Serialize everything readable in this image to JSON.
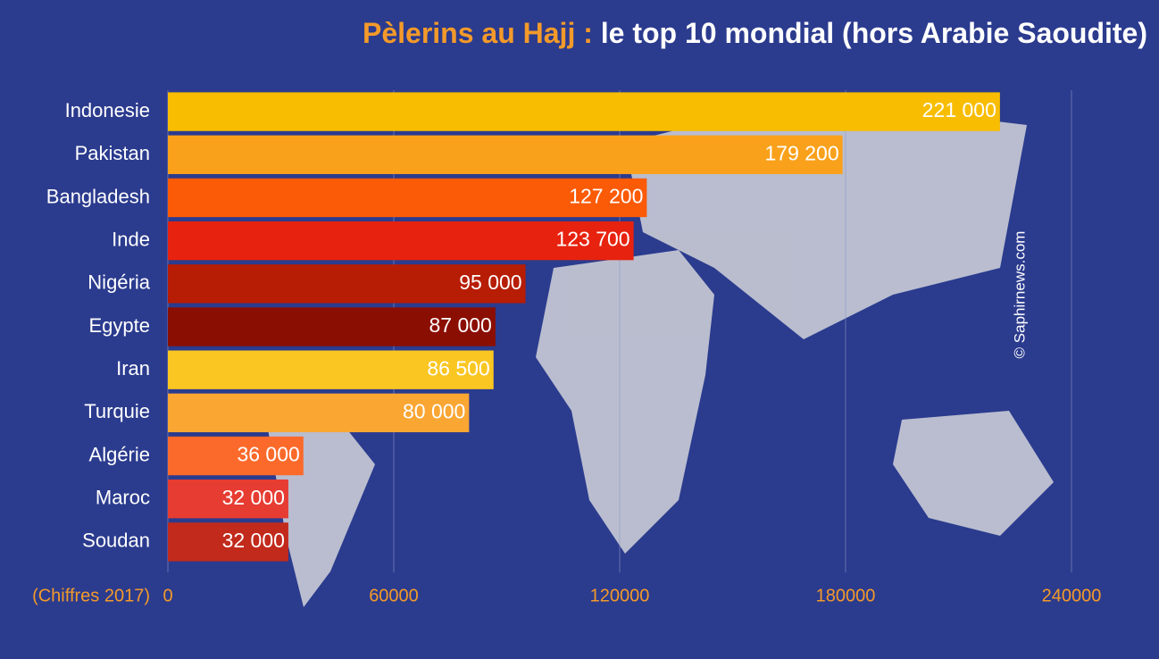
{
  "chart_data": {
    "type": "bar",
    "orientation": "horizontal",
    "title_parts": [
      "Pèlerins au Hajj :",
      "le top 10 mondial (hors Arabie Saoudite)"
    ],
    "title_colors": [
      "#f39a2a",
      "#ffffff"
    ],
    "annotation": "(Chiffres 2017)",
    "credit": "© Saphirnews.com",
    "categories": [
      "Indonesie",
      "Pakistan",
      "Bangladesh",
      "Inde",
      "Nigéria",
      "Egypte",
      "Iran",
      "Turquie",
      "Algérie",
      "Maroc",
      "Soudan"
    ],
    "values": [
      221000,
      179200,
      127200,
      123700,
      95000,
      87000,
      86500,
      80000,
      36000,
      32000,
      32000
    ],
    "value_labels": [
      "221 000",
      "179 200",
      "127 200",
      "123 700",
      "95 000",
      "87 000",
      "86 500",
      "80 000",
      "36 000",
      "32 000",
      "32 000"
    ],
    "colors": [
      "#f8bd00",
      "#f9a11b",
      "#fb5a06",
      "#e7220f",
      "#b71d05",
      "#8b0e02",
      "#fac622",
      "#f9a633",
      "#fb6a2b",
      "#e63c32",
      "#c22a1c"
    ],
    "xlim": [
      0,
      240000
    ],
    "xticks": [
      0,
      60000,
      120000,
      180000,
      240000
    ],
    "grid": true
  }
}
